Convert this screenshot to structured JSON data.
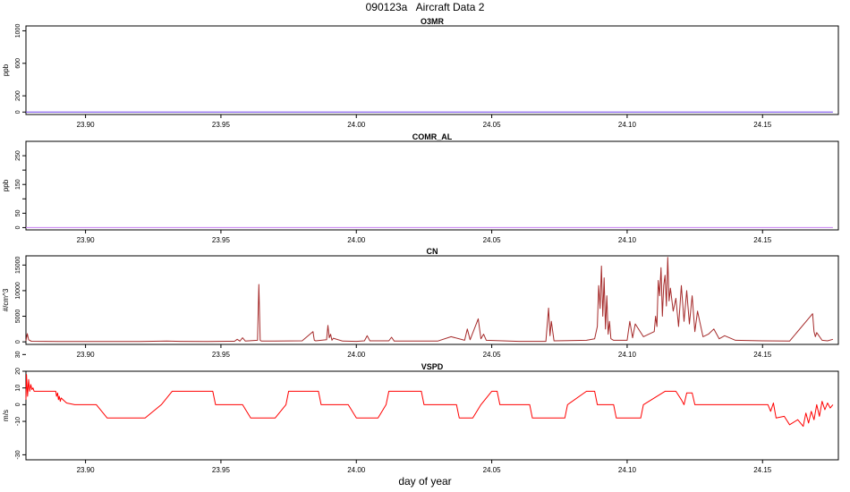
{
  "page": {
    "title": "090123a   Aircraft Data 2",
    "xlabel": "day of year"
  },
  "chart_data": [
    {
      "type": "line",
      "title": "O3MR",
      "ylabel": "ppb",
      "xlim": [
        23.878,
        24.178
      ],
      "ylim": [
        -30,
        1060
      ],
      "xticks": [
        23.9,
        23.95,
        24.0,
        24.05,
        24.1,
        24.15
      ],
      "yticks": [
        0,
        200,
        600,
        1000
      ],
      "color": "#6a3de8",
      "series": [
        {
          "x": [
            23.878,
            24.176
          ],
          "y": [
            0,
            0
          ]
        }
      ]
    },
    {
      "type": "line",
      "title": "COMR_AL",
      "ylabel": "ppb",
      "xlim": [
        23.878,
        24.178
      ],
      "ylim": [
        -8,
        300
      ],
      "xticks": [
        23.9,
        23.95,
        24.0,
        24.05,
        24.1,
        24.15
      ],
      "yticks": [
        0,
        50,
        100,
        150,
        200,
        250
      ],
      "ytick_labels": [
        "0",
        "50",
        "",
        "150",
        "",
        "250"
      ],
      "color": "#c77bf2",
      "series": [
        {
          "x": [
            23.878,
            24.176
          ],
          "y": [
            0,
            0
          ]
        }
      ]
    },
    {
      "type": "line",
      "title": "CN",
      "ylabel": "#/cm^3",
      "xlim": [
        23.878,
        24.178
      ],
      "ylim": [
        -500,
        16800
      ],
      "xticks": [
        23.9,
        23.95,
        24.0,
        24.05,
        24.1,
        24.15
      ],
      "yticks": [
        0,
        5000,
        10000,
        15000
      ],
      "color": "#a52a2a",
      "series": [
        {
          "x": [
            23.878,
            23.8785,
            23.879,
            23.88,
            23.89,
            23.9,
            23.92,
            23.93,
            23.935,
            23.945,
            23.955,
            23.956,
            23.957,
            23.958,
            23.959,
            23.9635,
            23.964,
            23.9645,
            23.965,
            23.97,
            23.98,
            23.984,
            23.9845,
            23.985,
            23.989,
            23.9895,
            23.99,
            23.9905,
            23.991,
            23.9915,
            23.995,
            24.0,
            24.003,
            24.004,
            24.005,
            24.012,
            24.013,
            24.014,
            24.02,
            24.03,
            24.035,
            24.04,
            24.041,
            24.042,
            24.045,
            24.046,
            24.047,
            24.048,
            24.06,
            24.07,
            24.071,
            24.0715,
            24.072,
            24.073,
            24.085,
            24.088,
            24.089,
            24.0895,
            24.09,
            24.0905,
            24.091,
            24.0915,
            24.092,
            24.0925,
            24.093,
            24.0935,
            24.094,
            24.095,
            24.1,
            24.101,
            24.102,
            24.103,
            24.106,
            24.108,
            24.11,
            24.1105,
            24.111,
            24.1115,
            24.112,
            24.1125,
            24.113,
            24.1135,
            24.114,
            24.1145,
            24.115,
            24.1155,
            24.116,
            24.117,
            24.118,
            24.119,
            24.12,
            24.121,
            24.122,
            24.123,
            24.124,
            24.125,
            24.126,
            24.128,
            24.13,
            24.132,
            24.134,
            24.136,
            24.14,
            24.15,
            24.16,
            24.1685,
            24.169,
            24.1695,
            24.17,
            24.172,
            24.174,
            24.176
          ],
          "y": [
            200,
            1600,
            400,
            120,
            80,
            60,
            80,
            150,
            100,
            80,
            120,
            500,
            150,
            800,
            150,
            300,
            11200,
            300,
            150,
            150,
            200,
            2000,
            300,
            200,
            400,
            3200,
            800,
            1500,
            300,
            700,
            150,
            100,
            200,
            1200,
            200,
            200,
            900,
            150,
            150,
            150,
            1000,
            300,
            2500,
            400,
            4500,
            600,
            1500,
            300,
            100,
            100,
            6600,
            1200,
            4000,
            200,
            300,
            600,
            3000,
            11000,
            6500,
            14800,
            5000,
            12500,
            2500,
            9000,
            1500,
            4000,
            600,
            300,
            300,
            4000,
            800,
            3500,
            1000,
            1500,
            2000,
            5000,
            3000,
            12000,
            9000,
            14500,
            5000,
            11000,
            13000,
            7000,
            16500,
            8000,
            10500,
            6000,
            8500,
            3000,
            11000,
            4000,
            10000,
            3500,
            9000,
            2000,
            6000,
            1000,
            1500,
            2500,
            600,
            1200,
            300,
            200,
            150,
            5500,
            2000,
            1000,
            1800,
            300,
            200,
            500
          ]
        }
      ]
    },
    {
      "type": "line",
      "title": "VSPD",
      "ylabel": "m/s",
      "xlim": [
        23.878,
        24.178
      ],
      "ylim": [
        -33,
        20
      ],
      "xticks": [
        23.9,
        23.95,
        24.0,
        24.05,
        24.1,
        24.15
      ],
      "yticks": [
        -30,
        -10,
        0,
        10,
        20,
        30
      ],
      "color": "#ff0000",
      "series": [
        {
          "x": [
            23.878,
            23.8782,
            23.8786,
            23.879,
            23.8794,
            23.8798,
            23.8802,
            23.8806,
            23.881,
            23.889,
            23.8893,
            23.8897,
            23.89,
            23.8903,
            23.8907,
            23.891,
            23.893,
            23.896,
            23.9,
            23.904,
            23.908,
            23.91,
            23.911,
            23.912,
            23.918,
            23.921,
            23.922,
            23.928,
            23.932,
            23.933,
            23.94,
            23.947,
            23.948,
            23.95,
            23.958,
            23.961,
            23.962,
            23.97,
            23.974,
            23.975,
            23.982,
            23.986,
            23.987,
            23.993,
            23.997,
            24.0,
            24.002,
            24.004,
            24.008,
            24.011,
            24.012,
            24.02,
            24.024,
            24.025,
            24.033,
            24.037,
            24.038,
            24.043,
            24.046,
            24.05,
            24.052,
            24.053,
            24.06,
            24.064,
            24.065,
            24.073,
            24.077,
            24.078,
            24.085,
            24.088,
            24.089,
            24.095,
            24.096,
            24.098,
            24.1,
            24.105,
            24.106,
            24.114,
            24.117,
            24.118,
            24.12,
            24.121,
            24.122,
            24.124,
            24.125,
            24.13,
            24.14,
            24.15,
            24.152,
            24.153,
            24.154,
            24.155,
            24.158,
            24.16,
            24.163,
            24.165,
            24.166,
            24.167,
            24.168,
            24.169,
            24.17,
            24.171,
            24.172,
            24.173,
            24.174,
            24.175,
            24.176
          ],
          "y": [
            3,
            18,
            5,
            15,
            8,
            12,
            9,
            10,
            8,
            8,
            5,
            7,
            3,
            5,
            2,
            4,
            1,
            0,
            0,
            0,
            -8,
            -8,
            -8,
            -8,
            -8,
            -8,
            -8,
            0,
            8,
            8,
            8,
            8,
            0,
            0,
            0,
            -8,
            -8,
            -8,
            0,
            8,
            8,
            8,
            0,
            0,
            0,
            -8,
            -8,
            -8,
            -8,
            0,
            8,
            8,
            8,
            0,
            0,
            0,
            -8,
            -8,
            0,
            8,
            8,
            0,
            0,
            0,
            -8,
            -8,
            -8,
            0,
            8,
            8,
            0,
            0,
            -8,
            -8,
            -8,
            -8,
            0,
            8,
            8,
            8,
            3,
            0,
            7,
            7,
            0,
            0,
            0,
            0,
            0,
            -4,
            1,
            -8,
            -7,
            -12,
            -9,
            -13,
            -5,
            -11,
            -4,
            -9,
            0,
            -7,
            2,
            -3,
            1,
            -2,
            0
          ]
        }
      ]
    }
  ]
}
